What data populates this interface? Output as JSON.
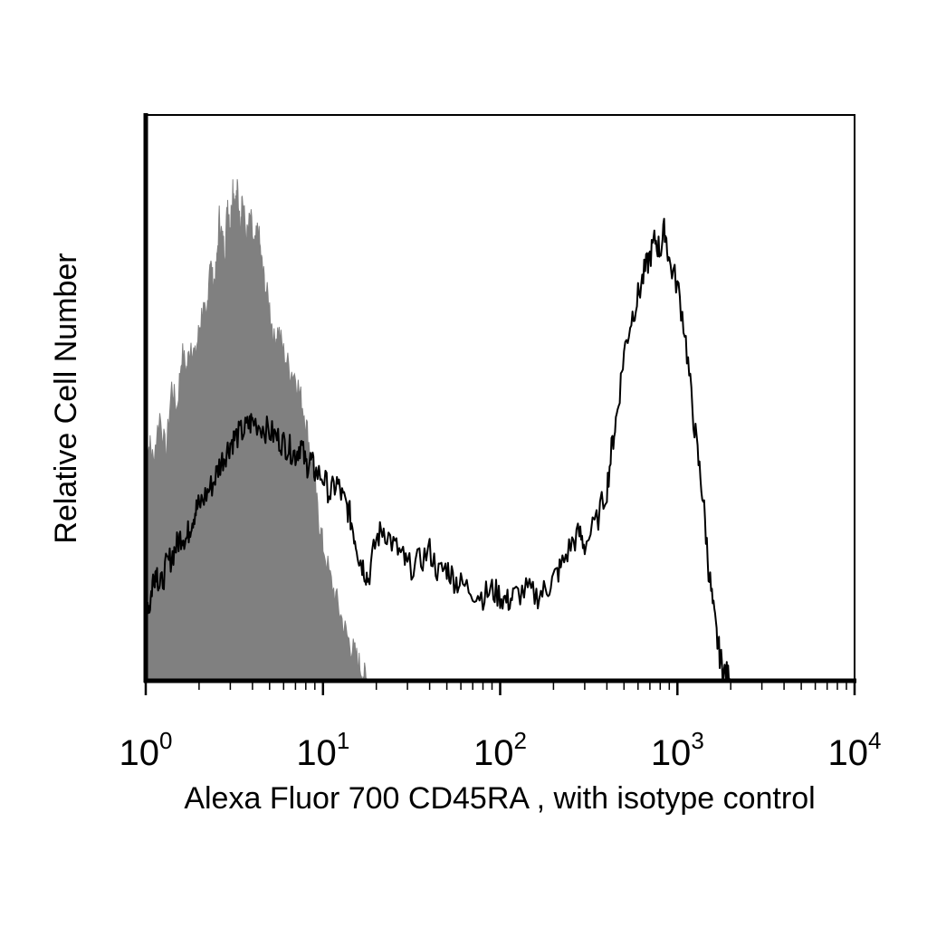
{
  "chart_data": {
    "type": "area",
    "xlabel": "Alexa Fluor 700 CD45RA , with isotype control",
    "ylabel": "Relative Cell Number",
    "x_scale": "log",
    "xlim": [
      1,
      10000
    ],
    "ylim": [
      0,
      100
    ],
    "x_ticks": [
      {
        "base": "10",
        "exp": "0",
        "value": 1
      },
      {
        "base": "10",
        "exp": "1",
        "value": 10
      },
      {
        "base": "10",
        "exp": "2",
        "value": 100
      },
      {
        "base": "10",
        "exp": "3",
        "value": 1000
      },
      {
        "base": "10",
        "exp": "4",
        "value": 10000
      }
    ],
    "grid": false,
    "series": [
      {
        "style": "filled",
        "color": "#808080",
        "x": [
          1.0,
          1.05,
          1.1,
          1.2,
          1.3,
          1.4,
          1.5,
          1.6,
          1.7,
          1.8,
          1.9,
          2.0,
          2.1,
          2.2,
          2.3,
          2.4,
          2.5,
          2.6,
          2.7,
          2.8,
          2.9,
          3.0,
          3.1,
          3.2,
          3.3,
          3.4,
          3.5,
          3.7,
          3.9,
          4.1,
          4.3,
          4.5,
          4.7,
          5.0,
          5.3,
          5.6,
          6.0,
          6.5,
          7.0,
          7.5,
          8.0,
          8.5,
          9.0,
          9.5,
          10.0,
          11.0,
          12.0,
          13.0,
          14.0,
          15.0,
          16.0,
          17.0,
          18.0
        ],
        "y": [
          38,
          42,
          39,
          47,
          40,
          52,
          48,
          58,
          55,
          60,
          57,
          62,
          66,
          63,
          75,
          70,
          72,
          82,
          78,
          76,
          85,
          80,
          88,
          84,
          87,
          80,
          86,
          78,
          82,
          76,
          80,
          74,
          70,
          66,
          60,
          62,
          58,
          55,
          54,
          50,
          46,
          40,
          34,
          28,
          24,
          18,
          14,
          10,
          7,
          5,
          3,
          1,
          0
        ]
      },
      {
        "style": "outline",
        "color": "#000000",
        "x": [
          1.0,
          1.05,
          1.1,
          1.15,
          1.2,
          1.3,
          1.4,
          1.5,
          1.6,
          1.7,
          1.8,
          1.9,
          2.0,
          2.2,
          2.4,
          2.6,
          2.8,
          3.0,
          3.2,
          3.5,
          3.8,
          4.0,
          4.5,
          5.0,
          5.5,
          6.0,
          6.5,
          7.0,
          7.5,
          8.0,
          8.5,
          9.0,
          10.0,
          11.0,
          12.0,
          13.0,
          14.0,
          15.0,
          16.0,
          17.0,
          18.0,
          20.0,
          22.0,
          25.0,
          28.0,
          30.0,
          35.0,
          40.0,
          45.0,
          50.0,
          55.0,
          60.0,
          70.0,
          80.0,
          90.0,
          100.0,
          110.0,
          120.0,
          140.0,
          160.0,
          180.0,
          200.0,
          220.0,
          250.0,
          280.0,
          300.0,
          350.0,
          400.0,
          430.0,
          460.0,
          500.0,
          550.0,
          600.0,
          650.0,
          700.0,
          750.0,
          800.0,
          850.0,
          900.0,
          1000.0,
          1100.0,
          1200.0,
          1300.0,
          1400.0,
          1500.0,
          1600.0,
          1700.0,
          1800.0,
          1900.0,
          2000.0
        ],
        "y": [
          15,
          13,
          18,
          20,
          16,
          20,
          22,
          24,
          26,
          25,
          28,
          30,
          31,
          33,
          35,
          38,
          40,
          42,
          43,
          44,
          45,
          46,
          45,
          44,
          43,
          42,
          41,
          40,
          42,
          38,
          39,
          37,
          36,
          33,
          35,
          32,
          30,
          26,
          22,
          20,
          18,
          25,
          27,
          24,
          22,
          20,
          21,
          23,
          19,
          20,
          18,
          17,
          16,
          15,
          16,
          15,
          14,
          15,
          16,
          15,
          16,
          18,
          20,
          24,
          26,
          24,
          28,
          34,
          42,
          48,
          58,
          64,
          68,
          72,
          75,
          78,
          76,
          80,
          74,
          70,
          62,
          50,
          40,
          32,
          20,
          12,
          6,
          2,
          1,
          0
        ]
      }
    ]
  }
}
